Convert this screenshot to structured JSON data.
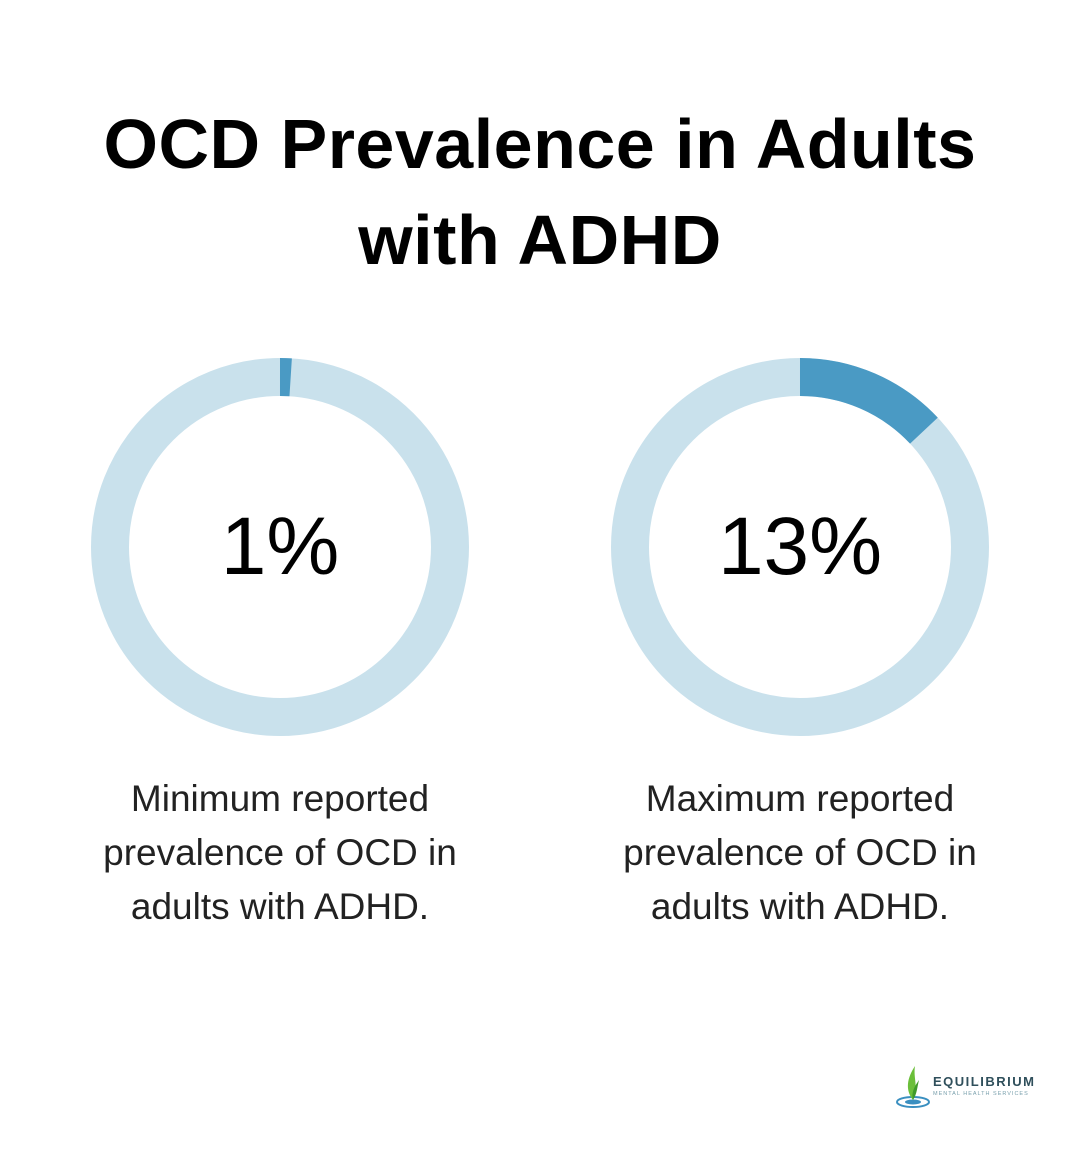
{
  "title": "OCD Prevalence in Adults with ADHD",
  "colors": {
    "track": "#c9e1ec",
    "fill": "#4a9ac4"
  },
  "chart_data": [
    {
      "type": "pie",
      "subtype": "donut",
      "value_percent": 1,
      "value_label": "1%",
      "caption": "Minimum reported prevalence of OCD in adults with ADHD."
    },
    {
      "type": "pie",
      "subtype": "donut",
      "value_percent": 13,
      "value_label": "13%",
      "caption": "Maximum reported prevalence of OCD in adults with ADHD."
    }
  ],
  "logo": {
    "name": "EQUILIBRIUM",
    "tagline": "MENTAL HEALTH SERVICES"
  }
}
